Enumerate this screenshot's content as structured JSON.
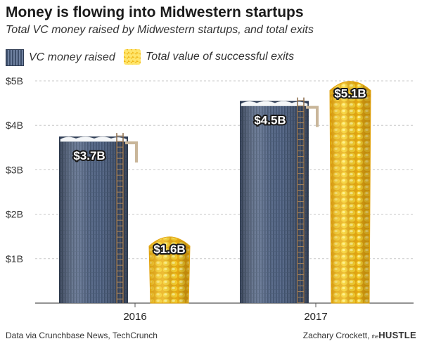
{
  "title": "Money is flowing into Midwestern startups",
  "subtitle": "Total VC money raised by Midwestern startups, and total exits",
  "legend": [
    {
      "label": "VC money raised",
      "icon": "silo-icon"
    },
    {
      "label": "Total value of successful exits",
      "icon": "corn-icon"
    }
  ],
  "chart_data": {
    "type": "bar",
    "categories": [
      "2016",
      "2017"
    ],
    "series": [
      {
        "name": "VC money raised",
        "values": [
          3.7,
          4.5
        ],
        "labels": [
          "$3.7B",
          "$4.5B"
        ]
      },
      {
        "name": "Total value of successful exits",
        "values": [
          1.6,
          5.1
        ],
        "labels": [
          "$1.6B",
          "$5.1B"
        ]
      }
    ],
    "y_ticks": [
      1,
      2,
      3,
      4,
      5
    ],
    "y_tick_labels": [
      "$1B",
      "$2B",
      "$3B",
      "$4B",
      "$5B"
    ],
    "ylim": [
      0,
      5
    ],
    "grid": true,
    "legend_placement": "top-left"
  },
  "colors": {
    "silo_dark": "#3e4f6b",
    "silo_light": "#6f81a0",
    "corn_dark": "#e3a30c",
    "corn_light": "#ffe45c",
    "grid": "#c8c8c8"
  },
  "footer": {
    "source": "Data via Crunchbase News, TechCrunch",
    "author": "Zachary Crockett,",
    "brand_prefix": "the",
    "brand": "HUSTLE"
  }
}
